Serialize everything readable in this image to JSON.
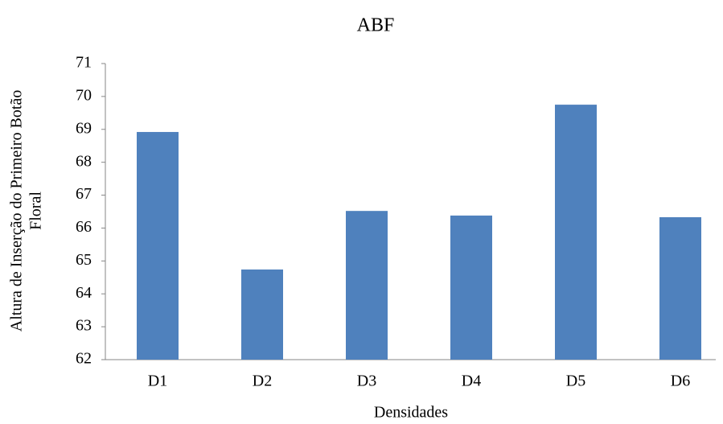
{
  "chart_data": {
    "type": "bar",
    "title": "ABF",
    "x_label": "Densidades",
    "y_label": [
      "Altura de Inserção do Primeiro Botão",
      "Floral"
    ],
    "categories": [
      "D1",
      "D2",
      "D3",
      "D4",
      "D5",
      "D6"
    ],
    "values": [
      68.92,
      64.74,
      66.52,
      66.38,
      69.75,
      66.33
    ],
    "color": "#4f81bd",
    "ylim": [
      62,
      71
    ],
    "yticks": [
      62,
      63,
      64,
      65,
      66,
      67,
      68,
      69,
      70,
      71
    ],
    "grid": false
  }
}
